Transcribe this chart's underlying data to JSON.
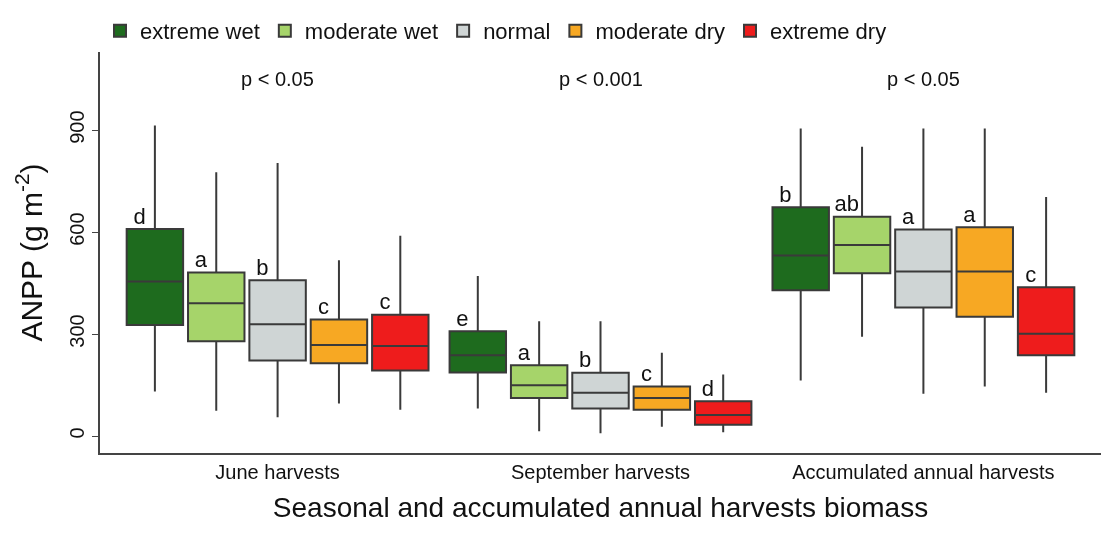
{
  "chart_data": {
    "type": "box",
    "categories": [
      "June harvests",
      "September harvests",
      "Accumulated annual harvests"
    ],
    "xlabel": "Seasonal and accumulated annual harvests biomass",
    "ylabel": "ANPP (g m$^{-2}$)",
    "ylim": [
      -50,
      1130
    ],
    "yticks": [
      0,
      300,
      600,
      900
    ],
    "legend": "top left",
    "annotations": [
      "p < 0.05",
      "p < 0.001",
      "p < 0.05"
    ],
    "series": [
      {
        "name": "extreme wet",
        "color": "#1e6b1e",
        "value_labels": [
          "d",
          "e",
          "b"
        ],
        "boxes": [
          {
            "low": 131,
            "q1": 327,
            "median": 455,
            "q3": 609,
            "high": 914
          },
          {
            "low": 81,
            "q1": 187,
            "median": 238,
            "q3": 308,
            "high": 471
          },
          {
            "low": 163,
            "q1": 429,
            "median": 531,
            "q3": 673,
            "high": 905
          }
        ]
      },
      {
        "name": "moderate wet",
        "color": "#a6d46a",
        "value_labels": [
          "a",
          "a",
          "ab"
        ],
        "boxes": [
          {
            "low": 74,
            "q1": 279,
            "median": 391,
            "q3": 481,
            "high": 776
          },
          {
            "low": 14,
            "q1": 112,
            "median": 149,
            "q3": 208,
            "high": 338
          },
          {
            "low": 292,
            "q1": 479,
            "median": 562,
            "q3": 645,
            "high": 851
          }
        ]
      },
      {
        "name": "normal",
        "color": "#cfd5d5",
        "value_labels": [
          "b",
          "b",
          "a"
        ],
        "boxes": [
          {
            "low": 55,
            "q1": 222,
            "median": 329,
            "q3": 458,
            "high": 803
          },
          {
            "low": 8,
            "q1": 81,
            "median": 127,
            "q3": 186,
            "high": 338
          },
          {
            "low": 124,
            "q1": 378,
            "median": 484,
            "q3": 608,
            "high": 905
          }
        ]
      },
      {
        "name": "moderate dry",
        "color": "#f7a823",
        "value_labels": [
          "c",
          "c",
          "a"
        ],
        "boxes": [
          {
            "low": 96,
            "q1": 214,
            "median": 268,
            "q3": 343,
            "high": 517
          },
          {
            "low": 27,
            "q1": 77,
            "median": 112,
            "q3": 146,
            "high": 245
          },
          {
            "low": 146,
            "q1": 351,
            "median": 484,
            "q3": 614,
            "high": 905
          }
        ]
      },
      {
        "name": "extreme dry",
        "color": "#ee1c1c",
        "value_labels": [
          "c",
          "d",
          "c"
        ],
        "boxes": [
          {
            "low": 77,
            "q1": 193,
            "median": 265,
            "q3": 357,
            "high": 589
          },
          {
            "low": 11,
            "q1": 33,
            "median": 62,
            "q3": 102,
            "high": 181
          },
          {
            "low": 127,
            "q1": 238,
            "median": 301,
            "q3": 438,
            "high": 703
          }
        ]
      }
    ]
  }
}
